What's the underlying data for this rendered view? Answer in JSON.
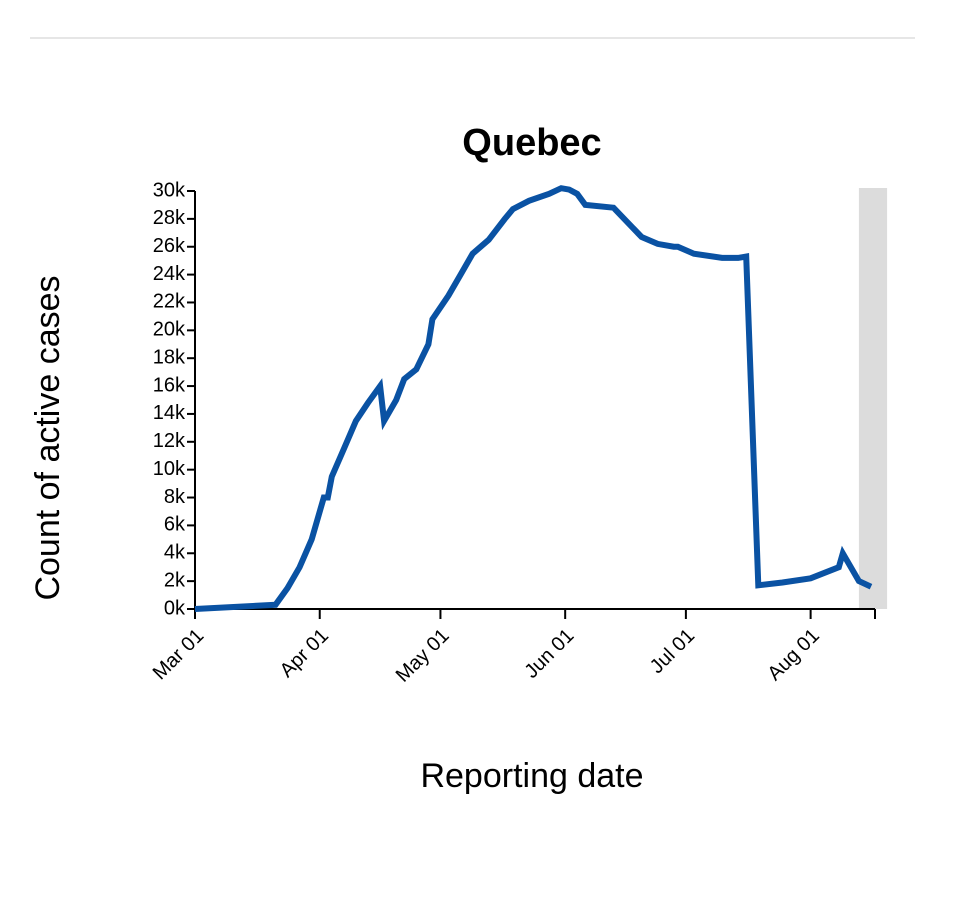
{
  "chart_data": {
    "type": "line",
    "title": "Quebec",
    "x_label": "Reporting date",
    "y_label": "Count of active cases",
    "x": [
      "03-01",
      "03-21",
      "03-24",
      "03-27",
      "03-30",
      "04-02",
      "04-03",
      "04-04",
      "04-07",
      "04-10",
      "04-13",
      "04-16",
      "04-17",
      "04-20",
      "04-22",
      "04-25",
      "04-28",
      "04-29",
      "05-03",
      "05-06",
      "05-09",
      "05-13",
      "05-17",
      "05-19",
      "05-23",
      "05-28",
      "05-31",
      "06-02",
      "06-04",
      "06-06",
      "06-13",
      "06-20",
      "06-24",
      "06-28",
      "06-29",
      "07-03",
      "07-10",
      "07-14",
      "07-16",
      "07-19",
      "07-25",
      "08-01",
      "08-08",
      "08-09",
      "08-13",
      "08-16"
    ],
    "series": [
      {
        "name": "Quebec",
        "color": "#0a52a3",
        "values": [
          0,
          300,
          1500,
          3000,
          5000,
          8000,
          8000,
          9500,
          11500,
          13500,
          14800,
          16000,
          13500,
          15000,
          16500,
          17200,
          19000,
          20800,
          22500,
          24000,
          25500,
          26500,
          28000,
          28700,
          29300,
          29800,
          30200,
          30100,
          29800,
          29000,
          28800,
          26700,
          26200,
          26000,
          26000,
          25500,
          25200,
          25200,
          25300,
          1700,
          1900,
          2200,
          3000,
          4000,
          2000,
          1600
        ]
      }
    ],
    "xlim": [
      "03-01",
      "08-17"
    ],
    "xticks": [
      {
        "value": "03-01",
        "label": "Mar 01"
      },
      {
        "value": "04-01",
        "label": "Apr 01"
      },
      {
        "value": "05-01",
        "label": "May 01"
      },
      {
        "value": "06-01",
        "label": "Jun 01"
      },
      {
        "value": "07-01",
        "label": "Jul 01"
      },
      {
        "value": "08-01",
        "label": "Aug 01"
      }
    ],
    "ylim": [
      0,
      30000
    ],
    "yticks": [
      {
        "value": 0,
        "label": "0k"
      },
      {
        "value": 2000,
        "label": "2k"
      },
      {
        "value": 4000,
        "label": "4k"
      },
      {
        "value": 6000,
        "label": "6k"
      },
      {
        "value": 8000,
        "label": "8k"
      },
      {
        "value": 10000,
        "label": "10k"
      },
      {
        "value": 12000,
        "label": "12k"
      },
      {
        "value": 14000,
        "label": "14k"
      },
      {
        "value": 16000,
        "label": "16k"
      },
      {
        "value": 18000,
        "label": "18k"
      },
      {
        "value": 20000,
        "label": "20k"
      },
      {
        "value": 22000,
        "label": "22k"
      },
      {
        "value": 24000,
        "label": "24k"
      },
      {
        "value": 26000,
        "label": "26k"
      },
      {
        "value": 28000,
        "label": "28k"
      },
      {
        "value": 30000,
        "label": "30k"
      }
    ],
    "shade": [
      "08-13",
      "08-20"
    ],
    "shade_color": "#dcdcdc",
    "grid": false
  }
}
